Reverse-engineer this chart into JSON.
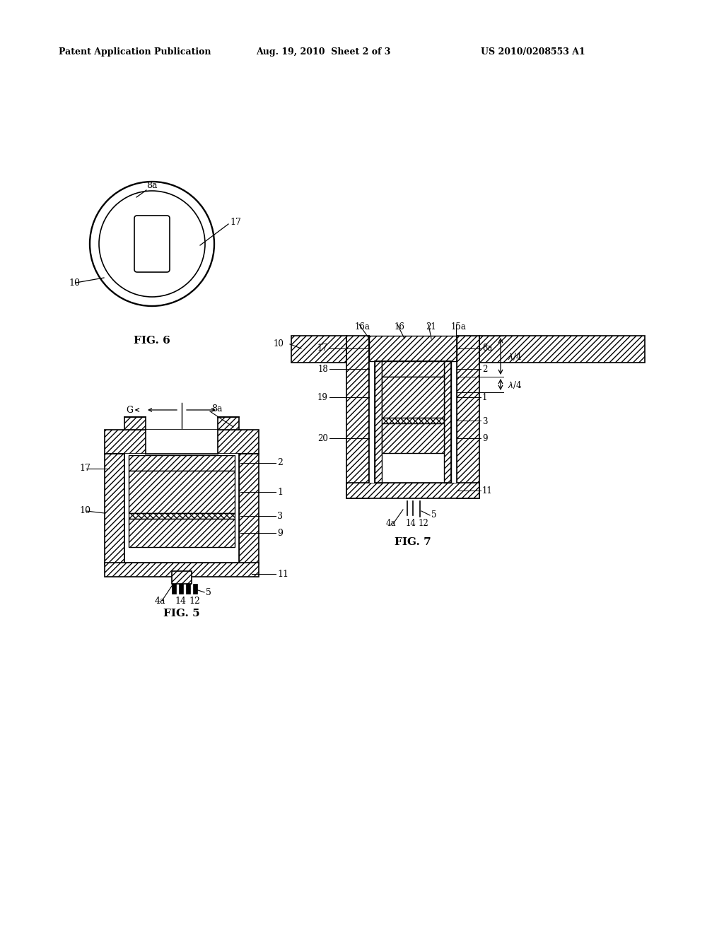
{
  "header_left": "Patent Application Publication",
  "header_mid": "Aug. 19, 2010  Sheet 2 of 3",
  "header_right": "US 2010/0208553 A1",
  "fig6_label": "FIG. 6",
  "fig5_label": "FIG. 5",
  "fig7_label": "FIG. 7",
  "bg_color": "#ffffff",
  "line_color": "#000000"
}
